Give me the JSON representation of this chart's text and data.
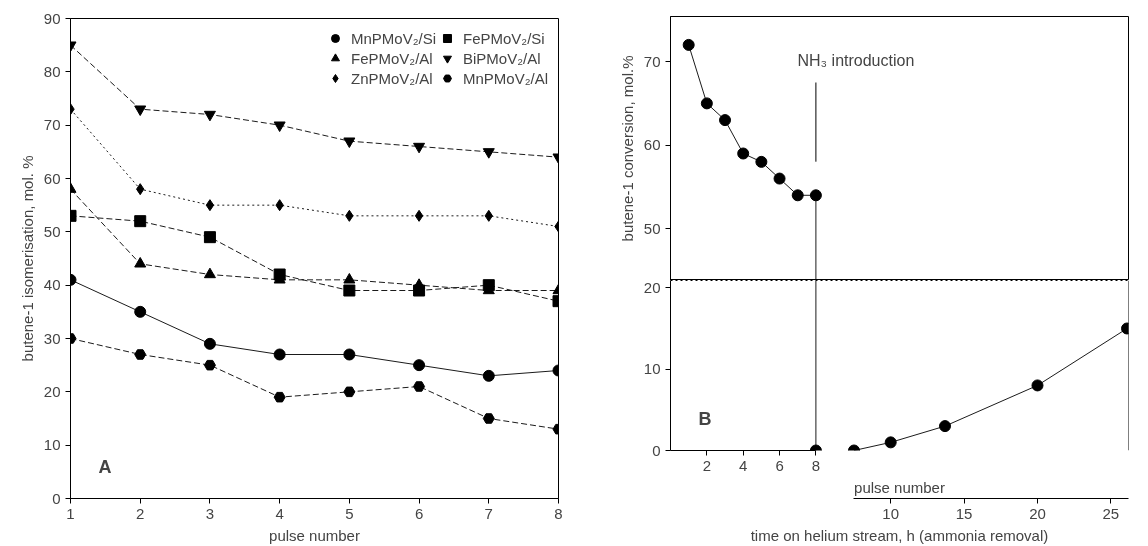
{
  "chart_data": [
    {
      "type": "line",
      "xlabel": "pulse number",
      "ylabel": "butene-1 isomerisation, mol. %",
      "annotations": [
        "A"
      ],
      "x": [
        1,
        2,
        3,
        4,
        5,
        6,
        7,
        8
      ],
      "xlim": [
        1,
        8
      ],
      "xticks": [
        1,
        2,
        3,
        4,
        5,
        6,
        7,
        8
      ],
      "ylim": [
        0,
        90
      ],
      "yticks": [
        0,
        10,
        20,
        30,
        40,
        50,
        60,
        70,
        80,
        90
      ],
      "legend": "top right",
      "series": [
        {
          "name": "MnPMoV₂/Si",
          "color": "#000000",
          "marker": "circle",
          "line_style": "solid",
          "values": [
            41,
            35,
            29,
            27,
            27,
            25,
            23,
            24
          ]
        },
        {
          "name": "FePMoV₂/Si",
          "color": "#000000",
          "marker": "square",
          "line_style": "dashed",
          "values": [
            53,
            52,
            49,
            42,
            39,
            39,
            40,
            37
          ]
        },
        {
          "name": "FePMoV₂/Al",
          "color": "#000000",
          "marker": "triangle",
          "line_style": "dashed",
          "values": [
            58,
            44,
            42,
            41,
            41,
            40,
            39,
            39
          ]
        },
        {
          "name": "BiPMoV₂/Al",
          "color": "#000000",
          "marker": "triangle",
          "line_style": "dashed",
          "values": [
            85,
            73,
            72,
            70,
            67,
            66,
            65,
            64
          ]
        },
        {
          "name": "ZnPMoV₂/Al",
          "color": "#000000",
          "marker": "diamond",
          "line_style": "dotted",
          "values": [
            73,
            58,
            55,
            55,
            53,
            53,
            53,
            51
          ]
        },
        {
          "name": "MnPMoV₂/Al",
          "color": "#000000",
          "marker": "circle",
          "line_style": "dashed",
          "values": [
            30,
            27,
            25,
            19,
            20,
            21,
            15,
            13
          ]
        }
      ]
    },
    {
      "type": "line",
      "ylabel": "butene-1 conversion, mol.%",
      "annotations": [
        "NH₃ introduction"
      ],
      "tick_labels": "y",
      "xlim": [
        0,
        25.2
      ],
      "ylim": [
        43.8,
        75.4
      ],
      "yticks": [
        50,
        60,
        70
      ],
      "ref_lines": [
        {
          "axis": "x",
          "value": 8
        }
      ],
      "marker": "circle",
      "series": [
        {
          "color": "#000000",
          "x": [
            1,
            2,
            3,
            4,
            5,
            6,
            7,
            8
          ],
          "values": [
            72,
            65,
            63,
            59,
            58,
            56,
            54,
            54
          ]
        }
      ]
    },
    {
      "type": "line",
      "xlabel": "pulse number",
      "x2label": "time on helium stream, h (ammonia removal)",
      "annotations": [
        "B"
      ],
      "xlim": [
        0,
        25.2
      ],
      "xticks": [
        2,
        4,
        6,
        8
      ],
      "x2lim": [
        -5,
        26.2
      ],
      "x2ticks": [
        10,
        15,
        20,
        25
      ],
      "ylim": [
        0,
        20.9
      ],
      "yticks": [
        0,
        10,
        20
      ],
      "ref_lines": [
        {
          "axis": "x",
          "value": 8
        }
      ],
      "marker": "circle",
      "series": [
        {
          "color": "#000000",
          "x": [
            8
          ],
          "values": [
            0
          ]
        },
        {
          "color": "#000000",
          "axis": "x2",
          "x": [
            7.5,
            10,
            13.7,
            20,
            26.1
          ],
          "values": [
            0,
            1,
            3,
            8,
            15
          ]
        }
      ]
    }
  ]
}
